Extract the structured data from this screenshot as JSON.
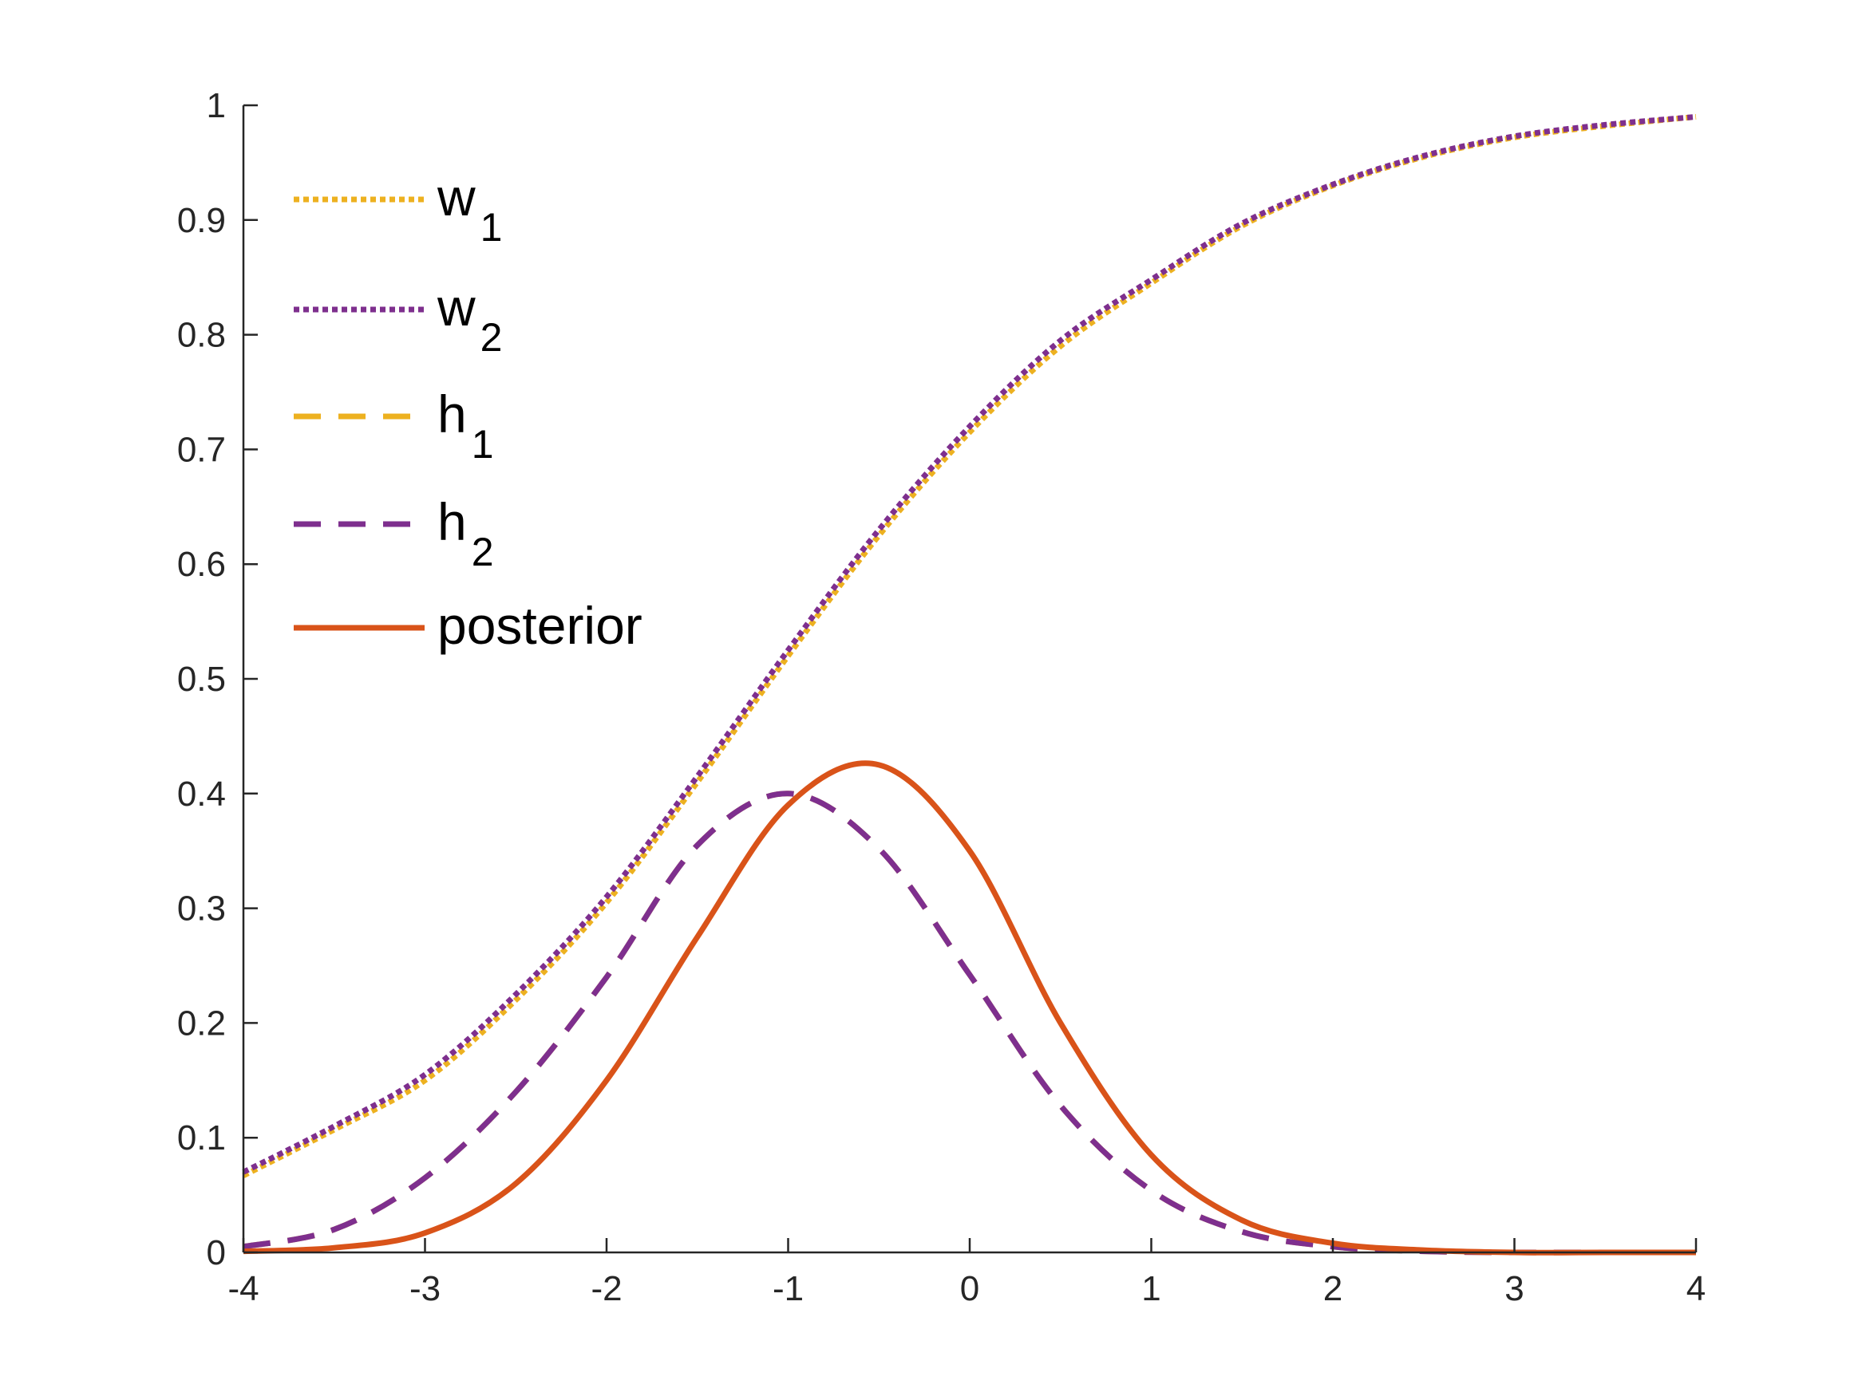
{
  "chart_data": {
    "type": "line",
    "xlim": [
      -4,
      4
    ],
    "ylim": [
      0,
      1
    ],
    "x_ticks": [
      "-4",
      "-3",
      "-2",
      "-1",
      "0",
      "1",
      "2",
      "3",
      "4"
    ],
    "y_ticks": [
      "0",
      "0.1",
      "0.2",
      "0.3",
      "0.4",
      "0.5",
      "0.6",
      "0.7",
      "0.8",
      "0.9",
      "1"
    ],
    "grid": false,
    "legend_position": "top-left",
    "x": [
      -4,
      -3.5,
      -3,
      -2.5,
      -2,
      -1.5,
      -1,
      -0.5,
      0,
      0.5,
      1,
      1.5,
      2,
      2.5,
      3,
      3.5,
      4
    ],
    "series": [
      {
        "name": "w",
        "name_sub": "1",
        "color": "#EDB120",
        "style": "dotted",
        "values": [
          0.067,
          0.107,
          0.15,
          0.22,
          0.305,
          0.41,
          0.52,
          0.625,
          0.715,
          0.79,
          0.845,
          0.895,
          0.93,
          0.955,
          0.972,
          0.982,
          0.99
        ]
      },
      {
        "name": "w",
        "name_sub": "2",
        "color": "#7E2F8E",
        "style": "dotted",
        "values": [
          0.07,
          0.11,
          0.155,
          0.225,
          0.31,
          0.415,
          0.525,
          0.63,
          0.72,
          0.795,
          0.848,
          0.897,
          0.931,
          0.956,
          0.973,
          0.983,
          0.99
        ]
      },
      {
        "name": "h",
        "name_sub": "1",
        "color": "#EDB120",
        "style": "dashed",
        "values": [
          0.005,
          0.02,
          0.065,
          0.14,
          0.24,
          0.355,
          0.4,
          0.352,
          0.242,
          0.128,
          0.054,
          0.018,
          0.005,
          0.001,
          0.0,
          0.0,
          0.0
        ]
      },
      {
        "name": "h",
        "name_sub": "2",
        "color": "#7E2F8E",
        "style": "dashed",
        "values": [
          0.005,
          0.02,
          0.065,
          0.14,
          0.24,
          0.355,
          0.4,
          0.352,
          0.242,
          0.128,
          0.054,
          0.018,
          0.005,
          0.001,
          0.0,
          0.0,
          0.0
        ]
      },
      {
        "name": "posterior",
        "name_sub": "",
        "color": "#D95319",
        "style": "solid",
        "values": [
          0.001,
          0.004,
          0.017,
          0.06,
          0.15,
          0.275,
          0.39,
          0.425,
          0.35,
          0.2,
          0.085,
          0.028,
          0.008,
          0.002,
          0.0,
          0.0,
          0.0
        ]
      }
    ]
  }
}
